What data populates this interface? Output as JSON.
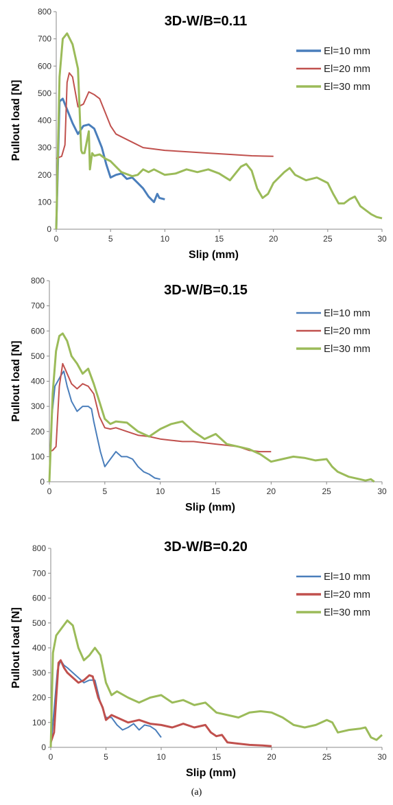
{
  "caption": "(a)",
  "colors": {
    "blue": "#4a7ebb",
    "red": "#c0504d",
    "green": "#9bbb59"
  },
  "chart_data": [
    {
      "type": "line",
      "title": "3D-W/B=0.11",
      "xlabel": "Slip (mm)",
      "ylabel": "Pullout load [N]",
      "xlim": [
        0,
        30
      ],
      "ylim": [
        0,
        800
      ],
      "xticks": [
        "0",
        "5",
        "10",
        "15",
        "20",
        "25",
        "30"
      ],
      "yticks": [
        "0",
        "100",
        "200",
        "300",
        "400",
        "500",
        "600",
        "700",
        "800"
      ],
      "grid": false,
      "legend": "right",
      "series": [
        {
          "name": "El=10 mm",
          "color": "#4a7ebb",
          "width": 3,
          "x": [
            0,
            0.3,
            0.6,
            1.0,
            1.5,
            2.0,
            2.5,
            3.0,
            3.5,
            3.8,
            4.2,
            4.6,
            5.0,
            5.5,
            6.0,
            6.5,
            7.0,
            7.5,
            8.0,
            8.5,
            9.0,
            9.3,
            9.5,
            10.0
          ],
          "y": [
            0,
            470,
            480,
            440,
            390,
            350,
            380,
            385,
            370,
            340,
            300,
            240,
            190,
            200,
            205,
            185,
            190,
            170,
            150,
            120,
            100,
            130,
            115,
            110
          ]
        },
        {
          "name": "El=20 mm",
          "color": "#c0504d",
          "width": 2,
          "x": [
            0,
            0.3,
            0.5,
            0.8,
            1.0,
            1.2,
            1.5,
            2.0,
            2.5,
            3.0,
            3.5,
            4.0,
            4.5,
            5.0,
            5.5,
            6.0,
            7.0,
            8.0,
            9.0,
            10.0,
            12.0,
            14.0,
            16.0,
            18.0,
            20.0
          ],
          "y": [
            260,
            265,
            268,
            310,
            540,
            575,
            560,
            450,
            460,
            505,
            495,
            480,
            430,
            380,
            350,
            340,
            320,
            300,
            295,
            290,
            285,
            280,
            275,
            270,
            268
          ]
        },
        {
          "name": "El=30 mm",
          "color": "#9bbb59",
          "width": 3,
          "x": [
            0,
            0.3,
            0.6,
            1.0,
            1.5,
            2.0,
            2.3,
            2.4,
            2.6,
            3.0,
            3.1,
            3.3,
            3.5,
            4.0,
            4.5,
            5.0,
            5.5,
            6.0,
            7.0,
            7.5,
            8.0,
            8.5,
            9.0,
            10.0,
            11.0,
            12.0,
            13.0,
            14.0,
            15.0,
            16.0,
            17.0,
            17.5,
            18.0,
            18.5,
            19.0,
            19.5,
            20.0,
            21.0,
            21.5,
            22.0,
            23.0,
            24.0,
            25.0,
            25.5,
            26.0,
            26.5,
            27.0,
            27.5,
            28.0,
            28.5,
            29.0,
            29.5,
            30.0
          ],
          "y": [
            0,
            560,
            700,
            720,
            680,
            590,
            290,
            280,
            280,
            360,
            220,
            280,
            270,
            275,
            260,
            250,
            230,
            210,
            195,
            200,
            220,
            210,
            220,
            200,
            205,
            220,
            210,
            220,
            205,
            180,
            230,
            240,
            215,
            150,
            115,
            130,
            170,
            210,
            225,
            200,
            180,
            190,
            170,
            130,
            95,
            95,
            110,
            120,
            85,
            70,
            55,
            45,
            40
          ]
        }
      ]
    },
    {
      "type": "line",
      "title": "3D-W/B=0.15",
      "xlabel": "Slip (mm)",
      "ylabel": "Pullout load [N]",
      "xlim": [
        0,
        30
      ],
      "ylim": [
        0,
        800
      ],
      "xticks": [
        "0",
        "5",
        "10",
        "15",
        "20",
        "25",
        "30"
      ],
      "yticks": [
        "0",
        "100",
        "200",
        "300",
        "400",
        "500",
        "600",
        "700",
        "800"
      ],
      "grid": false,
      "legend": "right",
      "series": [
        {
          "name": "El=10 mm",
          "color": "#4a7ebb",
          "width": 2,
          "x": [
            0,
            0.2,
            0.5,
            1.0,
            1.3,
            1.6,
            2.0,
            2.5,
            3.0,
            3.5,
            3.8,
            4.0,
            4.3,
            4.6,
            5.0,
            5.5,
            6.0,
            6.5,
            7.0,
            7.5,
            8.0,
            8.5,
            9.0,
            9.5,
            10.0
          ],
          "y": [
            0,
            250,
            380,
            420,
            440,
            380,
            320,
            280,
            300,
            300,
            290,
            240,
            180,
            120,
            60,
            90,
            120,
            100,
            100,
            90,
            60,
            40,
            30,
            15,
            10
          ]
        },
        {
          "name": "El=20 mm",
          "color": "#c0504d",
          "width": 2,
          "x": [
            0,
            0.3,
            0.6,
            0.9,
            1.2,
            1.5,
            2.0,
            2.5,
            3.0,
            3.5,
            4.0,
            4.5,
            5.0,
            5.5,
            6.0,
            7.0,
            8.0,
            9.0,
            10.0,
            11.0,
            12.0,
            13.0,
            14.0,
            15.0,
            16.0,
            17.0,
            18.0,
            19.0,
            20.0
          ],
          "y": [
            120,
            125,
            140,
            380,
            470,
            440,
            390,
            370,
            390,
            380,
            350,
            260,
            215,
            210,
            215,
            200,
            185,
            180,
            170,
            165,
            160,
            160,
            155,
            150,
            145,
            140,
            125,
            120,
            120
          ]
        },
        {
          "name": "El=30 mm",
          "color": "#9bbb59",
          "width": 3,
          "x": [
            0,
            0.3,
            0.6,
            0.9,
            1.2,
            1.6,
            2.0,
            2.5,
            3.0,
            3.5,
            4.0,
            4.5,
            5.0,
            5.5,
            6.0,
            7.0,
            8.0,
            9.0,
            10.0,
            11.0,
            12.0,
            13.0,
            14.0,
            15.0,
            16.0,
            17.0,
            18.0,
            19.0,
            20.0,
            21.0,
            22.0,
            23.0,
            24.0,
            25.0,
            25.5,
            26.0,
            27.0,
            28.0,
            28.5,
            29.0,
            29.3
          ],
          "y": [
            0,
            350,
            520,
            580,
            590,
            560,
            500,
            470,
            430,
            450,
            390,
            320,
            250,
            230,
            240,
            235,
            200,
            180,
            210,
            230,
            240,
            200,
            170,
            190,
            150,
            140,
            130,
            110,
            80,
            90,
            100,
            95,
            85,
            90,
            60,
            40,
            20,
            10,
            5,
            10,
            0
          ]
        }
      ]
    },
    {
      "type": "line",
      "title": "3D-W/B=0.20",
      "xlabel": "Slip (mm)",
      "ylabel": "Pullout load [N]",
      "xlim": [
        0,
        30
      ],
      "ylim": [
        0,
        800
      ],
      "xticks": [
        "0",
        "5",
        "10",
        "15",
        "20",
        "25",
        "30"
      ],
      "yticks": [
        "0",
        "100",
        "200",
        "300",
        "400",
        "500",
        "600",
        "700",
        "800"
      ],
      "grid": false,
      "legend": "right",
      "series": [
        {
          "name": "El=10 mm",
          "color": "#4a7ebb",
          "width": 2,
          "x": [
            0,
            0.3,
            0.6,
            0.9,
            1.2,
            1.5,
            2.0,
            2.5,
            3.0,
            3.5,
            4.0,
            4.5,
            5.0,
            5.5,
            6.0,
            6.5,
            7.0,
            7.5,
            8.0,
            8.5,
            9.0,
            9.5,
            10.0
          ],
          "y": [
            0,
            150,
            310,
            350,
            330,
            320,
            300,
            280,
            260,
            270,
            270,
            180,
            120,
            120,
            90,
            70,
            80,
            95,
            70,
            90,
            85,
            70,
            40
          ]
        },
        {
          "name": "El=20 mm",
          "color": "#c0504d",
          "width": 3,
          "x": [
            0,
            0.3,
            0.5,
            0.7,
            0.9,
            1.2,
            1.5,
            2.0,
            2.5,
            3.0,
            3.5,
            3.8,
            4.0,
            4.3,
            4.7,
            5.0,
            5.5,
            6.0,
            7.0,
            8.0,
            9.0,
            10.0,
            11.0,
            12.0,
            13.0,
            14.0,
            14.5,
            15.0,
            15.5,
            16.0,
            17.0,
            18.0,
            19.0,
            20.0
          ],
          "y": [
            20,
            60,
            200,
            340,
            350,
            320,
            300,
            280,
            260,
            270,
            290,
            285,
            250,
            200,
            160,
            110,
            130,
            120,
            100,
            110,
            95,
            90,
            80,
            95,
            80,
            90,
            60,
            45,
            50,
            20,
            15,
            10,
            8,
            5
          ]
        },
        {
          "name": "El=30 mm",
          "color": "#9bbb59",
          "width": 3,
          "x": [
            0,
            0.2,
            0.5,
            1.0,
            1.5,
            2.0,
            2.5,
            3.0,
            3.5,
            4.0,
            4.5,
            5.0,
            5.5,
            6.0,
            7.0,
            8.0,
            9.0,
            10.0,
            11.0,
            12.0,
            13.0,
            14.0,
            15.0,
            16.0,
            17.0,
            18.0,
            19.0,
            20.0,
            21.0,
            22.0,
            23.0,
            24.0,
            25.0,
            25.5,
            26.0,
            27.0,
            28.0,
            28.5,
            29.0,
            29.5,
            30.0
          ],
          "y": [
            0,
            380,
            450,
            480,
            510,
            490,
            400,
            350,
            370,
            400,
            370,
            260,
            210,
            225,
            200,
            180,
            200,
            210,
            180,
            190,
            170,
            180,
            140,
            130,
            120,
            140,
            145,
            140,
            120,
            90,
            80,
            90,
            110,
            100,
            60,
            70,
            75,
            80,
            40,
            30,
            50
          ]
        }
      ]
    }
  ]
}
